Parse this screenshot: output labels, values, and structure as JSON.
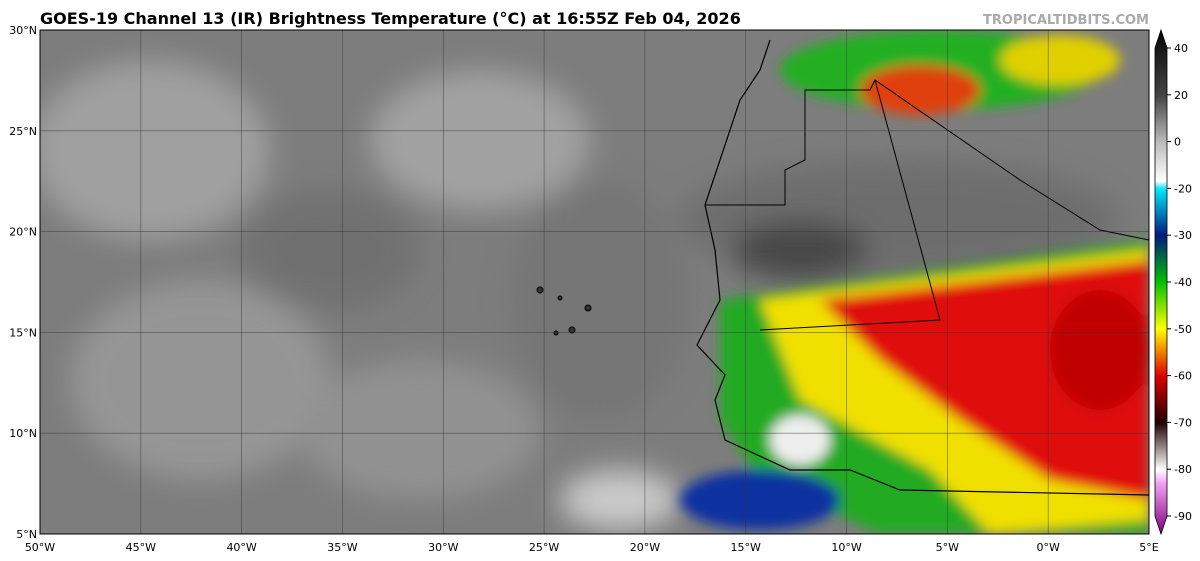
{
  "title": "GOES-19 Channel 13 (IR) Brightness Temperature (°C) at 16:55Z Feb 04, 2026",
  "watermark": "TROPICALTIDBITS.COM",
  "map": {
    "lat_labels": [
      "30°N",
      "25°N",
      "20°N",
      "15°N",
      "10°N",
      "5°N"
    ],
    "lon_labels": [
      "50°W",
      "45°W",
      "40°W",
      "35°W",
      "30°W",
      "25°W",
      "20°W",
      "15°W",
      "10°W",
      "5°W",
      "0°W",
      "5°E"
    ]
  },
  "colorbar": {
    "ticks": [
      40,
      20,
      0,
      -20,
      -30,
      -40,
      -50,
      -60,
      -70,
      -80,
      -90
    ]
  }
}
